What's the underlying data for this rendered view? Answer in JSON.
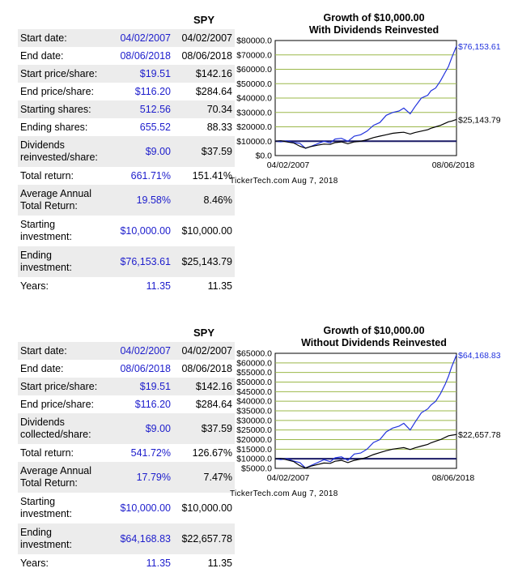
{
  "panels": [
    {
      "ticker": "SPY",
      "rows": [
        {
          "label": "Start date:",
          "v1": "04/02/2007",
          "v2": "04/02/2007"
        },
        {
          "label": "End date:",
          "v1": "08/06/2018",
          "v2": "08/06/2018"
        },
        {
          "label": "Start price/share:",
          "v1": "$19.51",
          "v2": "$142.16"
        },
        {
          "label": "End price/share:",
          "v1": "$116.20",
          "v2": "$284.64"
        },
        {
          "label": "Starting shares:",
          "v1": "512.56",
          "v2": "70.34"
        },
        {
          "label": "Ending shares:",
          "v1": "655.52",
          "v2": "88.33"
        },
        {
          "label": "Dividends reinvested/share:",
          "v1": "$9.00",
          "v2": "$37.59"
        },
        {
          "label": "Total return:",
          "v1": "661.71%",
          "v2": "151.41%"
        },
        {
          "label": "Average Annual Total Return:",
          "v1": "19.58%",
          "v2": "8.46%"
        },
        {
          "label": "Starting investment:",
          "v1": "$10,000.00",
          "v2": "$10,000.00"
        },
        {
          "label": "Ending investment:",
          "v1": "$76,153.61",
          "v2": "$25,143.79"
        },
        {
          "label": "Years:",
          "v1": "11.35",
          "v2": "11.35"
        }
      ],
      "credit": "TickerTech.com  Aug 7, 2018"
    },
    {
      "ticker": "SPY",
      "rows": [
        {
          "label": "Start date:",
          "v1": "04/02/2007",
          "v2": "04/02/2007"
        },
        {
          "label": "End date:",
          "v1": "08/06/2018",
          "v2": "08/06/2018"
        },
        {
          "label": "Start price/share:",
          "v1": "$19.51",
          "v2": "$142.16"
        },
        {
          "label": "End price/share:",
          "v1": "$116.20",
          "v2": "$284.64"
        },
        {
          "label": "Dividends collected/share:",
          "v1": "$9.00",
          "v2": "$37.59"
        },
        {
          "label": "Total return:",
          "v1": "541.72%",
          "v2": "126.67%"
        },
        {
          "label": "Average Annual Total Return:",
          "v1": "17.79%",
          "v2": "7.47%"
        },
        {
          "label": "Starting investment:",
          "v1": "$10,000.00",
          "v2": "$10,000.00"
        },
        {
          "label": "Ending investment:",
          "v1": "$64,168.83",
          "v2": "$22,657.78"
        },
        {
          "label": "Years:",
          "v1": "11.35",
          "v2": "11.35"
        }
      ],
      "credit": "TickerTech.com  Aug 7, 2018"
    }
  ],
  "chart_data": [
    {
      "type": "line",
      "title": "Growth of $10,000.00",
      "subtitle": "With Dividends Reinvested",
      "ylim": [
        0,
        80000
      ],
      "yticks": [
        "$80000.0",
        "$70000.0",
        "$60000.0",
        "$50000.0",
        "$40000.0",
        "$30000.0",
        "$20000.0",
        "$10000.0",
        "$0.0"
      ],
      "ytick_values": [
        80000,
        70000,
        60000,
        50000,
        40000,
        30000,
        20000,
        10000,
        0
      ],
      "x_start_label": "04/02/2007",
      "x_end_label": "08/06/2018",
      "grid": true,
      "baseline": 10000,
      "colors": {
        "blue": "#2233dd",
        "black": "#000000",
        "grid": "#9bb84a",
        "baseline": "#1a1a66"
      },
      "series": [
        {
          "color": "blue",
          "end_label": "$76,153.61",
          "x": [
            2007.25,
            2007.6,
            2008.0,
            2008.4,
            2008.8,
            2009.15,
            2009.5,
            2009.9,
            2010.3,
            2010.7,
            2011.0,
            2011.4,
            2011.8,
            2012.2,
            2012.6,
            2013.0,
            2013.4,
            2013.8,
            2014.2,
            2014.6,
            2015.0,
            2015.3,
            2015.7,
            2016.0,
            2016.4,
            2016.8,
            2017.0,
            2017.3,
            2017.6,
            2017.9,
            2018.1,
            2018.3,
            2018.6
          ],
          "values": [
            10000,
            9600,
            10200,
            9000,
            8500,
            5000,
            6500,
            8200,
            10000,
            8800,
            11500,
            12000,
            10000,
            13500,
            14500,
            17000,
            21000,
            23000,
            28000,
            30000,
            31000,
            33000,
            29000,
            34000,
            40000,
            42000,
            45000,
            47000,
            52000,
            58000,
            62000,
            68000,
            76153.61
          ]
        },
        {
          "color": "black",
          "end_label": "$25,143.79",
          "x": [
            2007.25,
            2007.6,
            2008.0,
            2008.4,
            2008.8,
            2009.15,
            2009.5,
            2009.9,
            2010.3,
            2010.7,
            2011.0,
            2011.4,
            2011.8,
            2012.2,
            2012.6,
            2013.0,
            2013.4,
            2013.8,
            2014.2,
            2014.6,
            2015.0,
            2015.3,
            2015.7,
            2016.0,
            2016.4,
            2016.8,
            2017.0,
            2017.3,
            2017.6,
            2017.9,
            2018.1,
            2018.3,
            2018.6
          ],
          "values": [
            10000,
            10300,
            9500,
            8800,
            6500,
            5200,
            6300,
            7200,
            8000,
            7800,
            9000,
            9500,
            8200,
            9500,
            10000,
            11000,
            12500,
            13500,
            14500,
            15500,
            16000,
            16200,
            15000,
            16000,
            17000,
            18000,
            19000,
            20000,
            21000,
            22500,
            23500,
            24000,
            25143.79
          ]
        }
      ]
    },
    {
      "type": "line",
      "title": "Growth of $10,000.00",
      "subtitle": "Without Dividends Reinvested",
      "ylim": [
        5000,
        65000
      ],
      "yticks": [
        "$65000.0",
        "$60000.0",
        "$55000.0",
        "$50000.0",
        "$45000.0",
        "$40000.0",
        "$35000.0",
        "$30000.0",
        "$25000.0",
        "$20000.0",
        "$15000.0",
        "$10000.0",
        "$5000.0"
      ],
      "ytick_values": [
        65000,
        60000,
        55000,
        50000,
        45000,
        40000,
        35000,
        30000,
        25000,
        20000,
        15000,
        10000,
        5000
      ],
      "x_start_label": "04/02/2007",
      "x_end_label": "08/06/2018",
      "grid": true,
      "baseline": 10000,
      "colors": {
        "blue": "#2233dd",
        "black": "#000000",
        "grid": "#9bb84a",
        "baseline": "#1a1a66"
      },
      "series": [
        {
          "color": "blue",
          "end_label": "$64,168.83",
          "x": [
            2007.25,
            2007.6,
            2008.0,
            2008.4,
            2008.8,
            2009.15,
            2009.5,
            2009.9,
            2010.3,
            2010.7,
            2011.0,
            2011.4,
            2011.8,
            2012.2,
            2012.6,
            2013.0,
            2013.4,
            2013.8,
            2014.2,
            2014.6,
            2015.0,
            2015.3,
            2015.7,
            2016.0,
            2016.4,
            2016.8,
            2017.0,
            2017.3,
            2017.6,
            2017.9,
            2018.1,
            2018.3,
            2018.6
          ],
          "values": [
            10000,
            9600,
            10000,
            8800,
            8000,
            5200,
            6500,
            8000,
            9500,
            8500,
            10500,
            11000,
            9200,
            12500,
            13000,
            15000,
            18500,
            20000,
            24000,
            26000,
            27000,
            28500,
            25000,
            29000,
            34000,
            36000,
            38000,
            40000,
            44000,
            49000,
            53000,
            58000,
            64168.83
          ]
        },
        {
          "color": "black",
          "end_label": "$22,657.78",
          "x": [
            2007.25,
            2007.6,
            2008.0,
            2008.4,
            2008.8,
            2009.15,
            2009.5,
            2009.9,
            2010.3,
            2010.7,
            2011.0,
            2011.4,
            2011.8,
            2012.2,
            2012.6,
            2013.0,
            2013.4,
            2013.8,
            2014.2,
            2014.6,
            2015.0,
            2015.3,
            2015.7,
            2016.0,
            2016.4,
            2016.8,
            2017.0,
            2017.3,
            2017.6,
            2017.9,
            2018.1,
            2018.3,
            2018.6
          ],
          "values": [
            10000,
            10200,
            9400,
            8600,
            6400,
            5200,
            6200,
            7000,
            7800,
            7600,
            8700,
            9200,
            8000,
            9200,
            9800,
            10800,
            12200,
            13200,
            14200,
            15000,
            15500,
            15800,
            14800,
            15700,
            16600,
            17500,
            18300,
            19200,
            20000,
            21200,
            22000,
            22300,
            22657.78
          ]
        }
      ]
    }
  ]
}
